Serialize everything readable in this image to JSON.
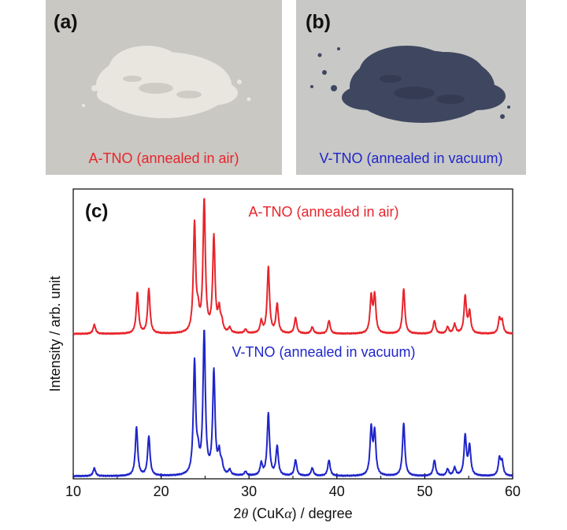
{
  "photos": {
    "a": {
      "label": "(a)",
      "caption": "A-TNO (annealed in air)",
      "caption_color": "#e8242b",
      "sample_color": "#e9e6e0",
      "background_color": "#c9c8c3"
    },
    "b": {
      "label": "(b)",
      "caption": "V-TNO (annealed in vacuum)",
      "caption_color": "#1f25c9",
      "sample_color": "#3f4760",
      "background_color": "#c8c8c6"
    }
  },
  "chart_data": {
    "type": "line",
    "panel_label": "(c)",
    "xlabel_parts": [
      "2",
      "θ",
      " (CuK",
      "α",
      ") / degree"
    ],
    "ylabel": "Intensity / arb. unit",
    "xlim": [
      10,
      60
    ],
    "ylim": [
      0,
      2.2
    ],
    "xticks": [
      10,
      20,
      30,
      40,
      50,
      60
    ],
    "grid": false,
    "legend": "none",
    "series": [
      {
        "name": "A-TNO (annealed in air)",
        "color": "#e8242b",
        "baseline": 1.1,
        "peaks": [
          [
            12.4,
            0.07
          ],
          [
            17.3,
            0.31
          ],
          [
            18.6,
            0.34
          ],
          [
            23.8,
            0.82
          ],
          [
            24.2,
            0.12
          ],
          [
            24.9,
            1.0
          ],
          [
            26.0,
            0.72
          ],
          [
            26.6,
            0.16
          ],
          [
            26.9,
            0.07
          ],
          [
            27.8,
            0.04
          ],
          [
            29.6,
            0.03
          ],
          [
            31.4,
            0.09
          ],
          [
            32.2,
            0.5
          ],
          [
            33.2,
            0.22
          ],
          [
            35.3,
            0.12
          ],
          [
            37.2,
            0.05
          ],
          [
            39.1,
            0.1
          ],
          [
            43.9,
            0.27
          ],
          [
            44.3,
            0.28
          ],
          [
            47.6,
            0.34
          ],
          [
            51.1,
            0.1
          ],
          [
            52.6,
            0.05
          ],
          [
            53.4,
            0.07
          ],
          [
            54.6,
            0.28
          ],
          [
            55.1,
            0.16
          ],
          [
            58.5,
            0.11
          ],
          [
            58.8,
            0.09
          ]
        ]
      },
      {
        "name": "V-TNO (annealed in vacuum)",
        "color": "#1f25c9",
        "baseline": 0.02,
        "peaks": [
          [
            12.4,
            0.06
          ],
          [
            17.2,
            0.37
          ],
          [
            18.6,
            0.3
          ],
          [
            23.8,
            0.85
          ],
          [
            24.2,
            0.12
          ],
          [
            24.9,
            1.08
          ],
          [
            26.0,
            0.78
          ],
          [
            26.6,
            0.15
          ],
          [
            26.9,
            0.07
          ],
          [
            27.8,
            0.04
          ],
          [
            29.6,
            0.03
          ],
          [
            31.4,
            0.09
          ],
          [
            32.2,
            0.47
          ],
          [
            33.2,
            0.22
          ],
          [
            35.3,
            0.12
          ],
          [
            37.2,
            0.06
          ],
          [
            39.1,
            0.12
          ],
          [
            43.9,
            0.35
          ],
          [
            44.3,
            0.32
          ],
          [
            47.6,
            0.4
          ],
          [
            51.1,
            0.12
          ],
          [
            52.6,
            0.05
          ],
          [
            53.4,
            0.06
          ],
          [
            54.6,
            0.3
          ],
          [
            55.1,
            0.22
          ],
          [
            58.5,
            0.13
          ],
          [
            58.8,
            0.1
          ]
        ]
      }
    ]
  }
}
